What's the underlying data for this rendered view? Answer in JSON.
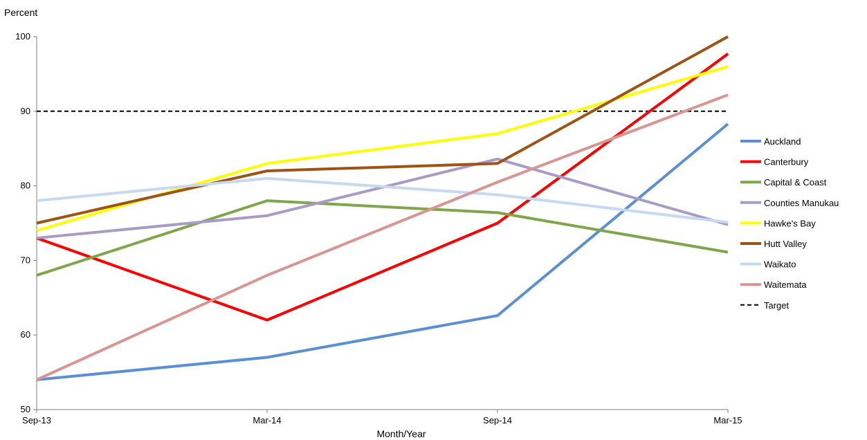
{
  "chart_data": {
    "type": "line",
    "title": "",
    "ylabel": "Percent",
    "xlabel": "Month/Year",
    "categories": [
      "Sep-13",
      "Mar-14",
      "Sep-14",
      "Mar-15"
    ],
    "ylim": [
      50,
      100
    ],
    "yticks": [
      "50",
      "60",
      "70",
      "80",
      "90",
      "100"
    ],
    "grid": false,
    "legend_position": "right",
    "series": [
      {
        "name": "Auckland",
        "color": "#5B8FD4",
        "values": [
          54,
          57,
          62.6,
          88.3
        ]
      },
      {
        "name": "Canterbury",
        "color": "#FF0000",
        "values": [
          73,
          62,
          75,
          97.7
        ]
      },
      {
        "name": "Capital & Coast",
        "color": "#7FA64A",
        "values": [
          68,
          78,
          76.4,
          71.1
        ]
      },
      {
        "name": "Counties Manukau",
        "color": "#A99BC6",
        "values": [
          73,
          76,
          83.6,
          74.8
        ]
      },
      {
        "name": "Hawke's Bay",
        "color": "#FFFF00",
        "values": [
          74,
          83,
          87,
          96
        ]
      },
      {
        "name": "Hutt Valley",
        "color": "#9C5314",
        "values": [
          75,
          82,
          83,
          100
        ]
      },
      {
        "name": "Waikato",
        "color": "#C6D9F1",
        "values": [
          78,
          81,
          78.8,
          75.1
        ]
      },
      {
        "name": "Waitemata",
        "color": "#D99594",
        "values": [
          54,
          68,
          80.5,
          92.2
        ]
      }
    ],
    "target": {
      "name": "Target",
      "value": 90,
      "color": "#000000"
    }
  }
}
